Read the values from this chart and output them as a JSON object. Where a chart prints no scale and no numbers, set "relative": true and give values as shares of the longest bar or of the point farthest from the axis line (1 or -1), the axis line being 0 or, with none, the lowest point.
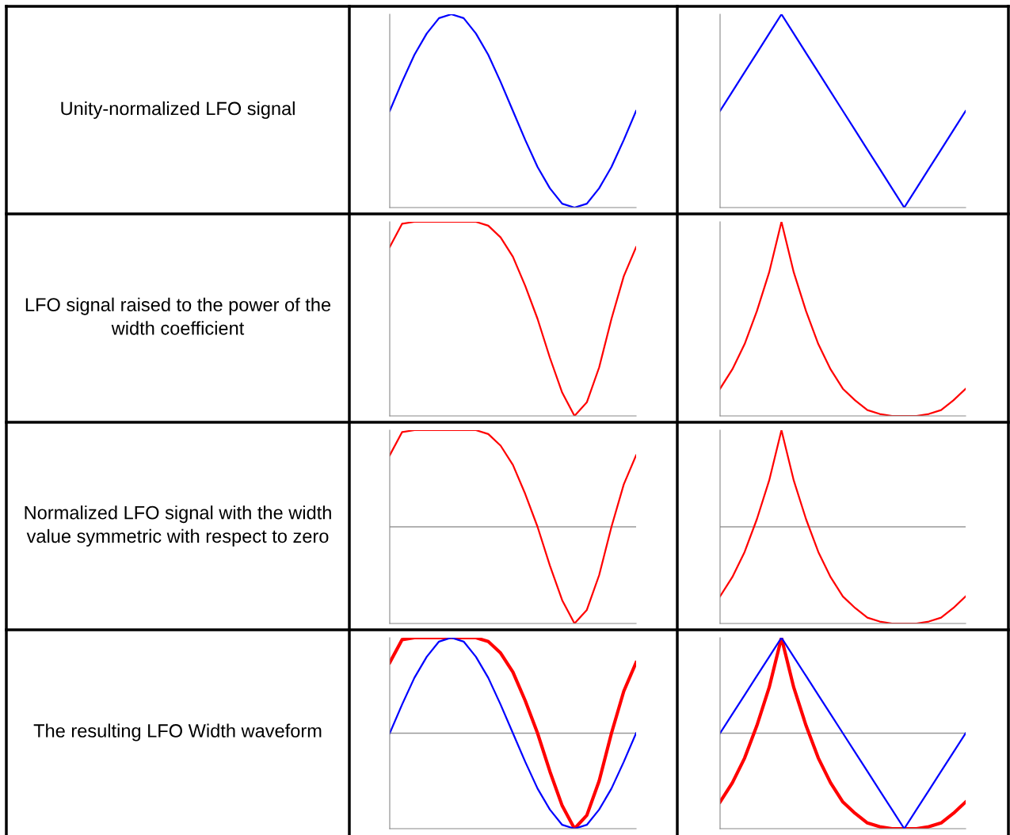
{
  "chart_data": [
    {
      "type": "other",
      "annotations": [
        "Unity-normalized LFO signal"
      ]
    },
    {
      "type": "line",
      "relative": true,
      "tick_labels": false,
      "categories": [
        null,
        null,
        null,
        null,
        null,
        null,
        null,
        null,
        null,
        null,
        null,
        null,
        null,
        null,
        null,
        null,
        null,
        null,
        null,
        null,
        null
      ],
      "series": [
        {
          "color": "#0000ff",
          "values": [
            0.5,
            0.65,
            0.79,
            0.9,
            0.98,
            1,
            0.98,
            0.9,
            0.79,
            0.65,
            0.5,
            0.35,
            0.21,
            0.1,
            0.02,
            0,
            0.02,
            0.1,
            0.21,
            0.35,
            0.5
          ]
        }
      ]
    },
    {
      "type": "line",
      "relative": true,
      "tick_labels": false,
      "categories": [
        null,
        null,
        null,
        null,
        null,
        null,
        null,
        null,
        null,
        null,
        null,
        null,
        null,
        null,
        null,
        null,
        null,
        null,
        null,
        null,
        null
      ],
      "series": [
        {
          "color": "#0000ff",
          "values": [
            0.5,
            0.6,
            0.7,
            0.8,
            0.9,
            1,
            0.9,
            0.8,
            0.7,
            0.6,
            0.5,
            0.4,
            0.3,
            0.2,
            0.1,
            0,
            0.1,
            0.2,
            0.3,
            0.4,
            0.5
          ]
        }
      ]
    },
    {
      "type": "other",
      "annotations": [
        "LFO signal raised to the power of the width coefficient"
      ]
    },
    {
      "type": "line",
      "relative": true,
      "tick_labels": false,
      "categories": [
        null,
        null,
        null,
        null,
        null,
        null,
        null,
        null,
        null,
        null,
        null,
        null,
        null,
        null,
        null,
        null,
        null,
        null,
        null,
        null,
        null
      ],
      "series": [
        {
          "color": "#ff0000",
          "values": [
            0.87,
            0.99,
            1,
            1,
            1,
            1,
            1,
            1,
            0.98,
            0.92,
            0.82,
            0.67,
            0.5,
            0.3,
            0.12,
            0,
            0.07,
            0.25,
            0.5,
            0.72,
            0.87
          ]
        }
      ]
    },
    {
      "type": "line",
      "relative": true,
      "tick_labels": false,
      "categories": [
        null,
        null,
        null,
        null,
        null,
        null,
        null,
        null,
        null,
        null,
        null,
        null,
        null,
        null,
        null,
        null,
        null,
        null,
        null,
        null,
        null
      ],
      "series": [
        {
          "color": "#ff0000",
          "values": [
            0.14,
            0.24,
            0.37,
            0.54,
            0.74,
            1,
            0.74,
            0.54,
            0.37,
            0.24,
            0.14,
            0.08,
            0.03,
            0.01,
            0,
            0,
            0,
            0.01,
            0.03,
            0.08,
            0.14
          ]
        }
      ]
    },
    {
      "type": "other",
      "annotations": [
        "Normalized LFO signal with the width value symmetric with respect to zero"
      ]
    },
    {
      "type": "line",
      "relative": true,
      "tick_labels": false,
      "ref_lines": [
        {
          "axis": "y",
          "value": 0,
          "color": "#999999"
        }
      ],
      "categories": [
        null,
        null,
        null,
        null,
        null,
        null,
        null,
        null,
        null,
        null,
        null,
        null,
        null,
        null,
        null,
        null,
        null,
        null,
        null,
        null,
        null
      ],
      "series": [
        {
          "color": "#ff0000",
          "values": [
            0.74,
            0.98,
            1,
            1,
            1,
            1,
            1,
            1,
            0.96,
            0.84,
            0.64,
            0.34,
            0,
            -0.4,
            -0.76,
            -1,
            -0.86,
            -0.5,
            0,
            0.44,
            0.74
          ]
        }
      ]
    },
    {
      "type": "line",
      "relative": true,
      "tick_labels": false,
      "ref_lines": [
        {
          "axis": "y",
          "value": 0,
          "color": "#999999"
        }
      ],
      "categories": [
        null,
        null,
        null,
        null,
        null,
        null,
        null,
        null,
        null,
        null,
        null,
        null,
        null,
        null,
        null,
        null,
        null,
        null,
        null,
        null,
        null
      ],
      "series": [
        {
          "color": "#ff0000",
          "values": [
            -0.72,
            -0.52,
            -0.26,
            0.08,
            0.48,
            1,
            0.48,
            0.08,
            -0.26,
            -0.52,
            -0.72,
            -0.84,
            -0.94,
            -0.98,
            -1,
            -1,
            -1,
            -0.98,
            -0.94,
            -0.84,
            -0.72
          ]
        }
      ]
    },
    {
      "type": "other",
      "annotations": [
        "The resulting LFO Width waveform"
      ]
    },
    {
      "type": "line",
      "relative": true,
      "tick_labels": false,
      "ref_lines": [
        {
          "axis": "y",
          "value": 0,
          "color": "#999999"
        }
      ],
      "categories": [
        null,
        null,
        null,
        null,
        null,
        null,
        null,
        null,
        null,
        null,
        null,
        null,
        null,
        null,
        null,
        null,
        null,
        null,
        null,
        null,
        null
      ],
      "series": [
        {
          "color": "#ff0000",
          "values": [
            0.74,
            0.98,
            1,
            1,
            1,
            1,
            1,
            1,
            0.96,
            0.84,
            0.64,
            0.34,
            0,
            -0.4,
            -0.76,
            -1,
            -0.86,
            -0.5,
            0,
            0.44,
            0.74
          ]
        },
        {
          "color": "#0000ff",
          "values": [
            0,
            0.3,
            0.58,
            0.8,
            0.96,
            1,
            0.96,
            0.8,
            0.58,
            0.3,
            0,
            -0.3,
            -0.58,
            -0.8,
            -0.96,
            -1,
            -0.96,
            -0.8,
            -0.58,
            -0.3,
            0
          ]
        }
      ]
    },
    {
      "type": "line",
      "relative": true,
      "tick_labels": false,
      "ref_lines": [
        {
          "axis": "y",
          "value": 0,
          "color": "#999999"
        }
      ],
      "categories": [
        null,
        null,
        null,
        null,
        null,
        null,
        null,
        null,
        null,
        null,
        null,
        null,
        null,
        null,
        null,
        null,
        null,
        null,
        null,
        null,
        null
      ],
      "series": [
        {
          "color": "#ff0000",
          "values": [
            -0.72,
            -0.52,
            -0.26,
            0.08,
            0.48,
            1,
            0.48,
            0.08,
            -0.26,
            -0.52,
            -0.72,
            -0.84,
            -0.94,
            -0.98,
            -1,
            -1,
            -1,
            -0.98,
            -0.94,
            -0.84,
            -0.72
          ]
        },
        {
          "color": "#0000ff",
          "values": [
            0,
            0.2,
            0.4,
            0.6,
            0.8,
            1,
            0.8,
            0.6,
            0.4,
            0.2,
            0,
            -0.2,
            -0.4,
            -0.6,
            -0.8,
            -1,
            -0.8,
            -0.6,
            -0.4,
            -0.2,
            0
          ]
        }
      ]
    }
  ]
}
